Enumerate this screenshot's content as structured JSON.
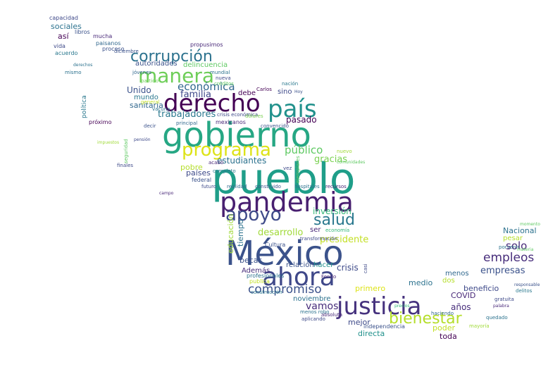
{
  "words": [
    {
      "text": "pueblo",
      "color": "#1f9e89"
    },
    {
      "text": "gobierno",
      "color": "#26a784"
    },
    {
      "text": "México",
      "color": "#3b528b"
    },
    {
      "text": "pandemia",
      "color": "#481f70"
    },
    {
      "text": "justicia",
      "color": "#46327e"
    },
    {
      "text": "ahora",
      "color": "#3f4889"
    },
    {
      "text": "derecho",
      "color": "#440154"
    },
    {
      "text": "país",
      "color": "#21918c"
    },
    {
      "text": "manera",
      "color": "#6ece58"
    },
    {
      "text": "corrupción",
      "color": "#2c728e"
    },
    {
      "text": "programa",
      "color": "#dde318"
    },
    {
      "text": "apoyo",
      "color": "#3e4a89"
    },
    {
      "text": "salud",
      "color": "#2a788e"
    },
    {
      "text": "bienestar",
      "color": "#b5de2b"
    },
    {
      "text": "compromiso",
      "color": "#3b528b"
    },
    {
      "text": "empleos",
      "color": "#472d7b"
    },
    {
      "text": "solo",
      "color": "#482878"
    },
    {
      "text": "público",
      "color": "#5ec962"
    },
    {
      "text": "económica",
      "color": "#31688e"
    },
    {
      "text": "familia",
      "color": "#3e4989"
    },
    {
      "text": "trabajadores",
      "color": "#2a788e"
    },
    {
      "text": "empresas",
      "color": "#3b528b"
    },
    {
      "text": "estudiantes",
      "color": "#2c728e"
    },
    {
      "text": "desarrollo",
      "color": "#a0da39"
    },
    {
      "text": "presidente",
      "color": "#c2df23"
    },
    {
      "text": "inversión",
      "color": "#35b779"
    },
    {
      "text": "gracias",
      "color": "#7ad151"
    },
    {
      "text": "vamos",
      "color": "#472d7b"
    },
    {
      "text": "crisis",
      "color": "#3e4a89"
    },
    {
      "text": "Nacional",
      "color": "#2c728e"
    },
    {
      "text": "sanitaria",
      "color": "#31688e"
    },
    {
      "text": "Unido",
      "color": "#3b528b"
    },
    {
      "text": "pasado",
      "color": "#440154"
    },
    {
      "text": "mundo",
      "color": "#2a788e"
    },
    {
      "text": "pobre",
      "color": "#b5de2b"
    },
    {
      "text": "países",
      "color": "#3e4a89"
    },
    {
      "text": "becas",
      "color": "#3b528b"
    },
    {
      "text": "años",
      "color": "#472d7b"
    },
    {
      "text": "beneficio",
      "color": "#3e4989"
    },
    {
      "text": "COVID",
      "color": "#482878"
    },
    {
      "text": "medio",
      "color": "#2c728e"
    },
    {
      "text": "dos",
      "color": "#b5de2b"
    },
    {
      "text": "menos",
      "color": "#31688e"
    },
    {
      "text": "poder",
      "color": "#c2df23"
    },
    {
      "text": "toda",
      "color": "#440154"
    },
    {
      "text": "directa",
      "color": "#21918c"
    },
    {
      "text": "mejor",
      "color": "#3e4a89"
    },
    {
      "text": "noviembre",
      "color": "#2c728e"
    },
    {
      "text": "primero",
      "color": "#dde318"
    },
    {
      "text": "Además",
      "color": "#472d7b"
    },
    {
      "text": "relación",
      "color": "#3b528b"
    },
    {
      "text": "hacer",
      "color": "#21918c"
    },
    {
      "text": "ser",
      "color": "#482878"
    },
    {
      "text": "sino",
      "color": "#3e4989"
    },
    {
      "text": "debe",
      "color": "#440154"
    },
    {
      "text": "autoridades",
      "color": "#3b528b"
    },
    {
      "text": "delincuencia",
      "color": "#5ec962"
    },
    {
      "text": "así",
      "color": "#440154"
    },
    {
      "text": "sociales",
      "color": "#2c728e"
    },
    {
      "text": "capacidad",
      "color": "#3e4989"
    },
    {
      "text": "mucha",
      "color": "#482878"
    },
    {
      "text": "paisanos",
      "color": "#31688e"
    },
    {
      "text": "proceso",
      "color": "#3b528b"
    },
    {
      "text": "acuerdo",
      "color": "#2a788e"
    },
    {
      "text": "vida",
      "color": "#3e4a89"
    },
    {
      "text": "libros",
      "color": "#3b528b"
    },
    {
      "text": "mismo",
      "color": "#2c728e"
    },
    {
      "text": "política",
      "color": "#2a788e"
    },
    {
      "text": "próximo",
      "color": "#440154"
    },
    {
      "text": "finales",
      "color": "#3e4a89"
    },
    {
      "text": "propusimos",
      "color": "#482878"
    },
    {
      "text": "diciembre",
      "color": "#3b528b"
    },
    {
      "text": "jóvenes",
      "color": "#31688e"
    },
    {
      "text": "partido",
      "color": "#6ece58"
    },
    {
      "text": "mundial",
      "color": "#2c728e"
    },
    {
      "text": "nueva",
      "color": "#3e4989"
    },
    {
      "text": "créditos",
      "color": "#5ec962"
    },
    {
      "text": "Carlos",
      "color": "#440154"
    },
    {
      "text": "Hoy",
      "color": "#3b528b"
    },
    {
      "text": "nación",
      "color": "#2a788e"
    },
    {
      "text": "crisis económica",
      "color": "#3e4a89"
    },
    {
      "text": "mexicanos",
      "color": "#482878"
    },
    {
      "text": "principal",
      "color": "#31688e"
    },
    {
      "text": "dólares",
      "color": "#7ad151"
    },
    {
      "text": "convencido",
      "color": "#3b528b"
    },
    {
      "text": "vacuna",
      "color": "#2c728e"
    },
    {
      "text": "general",
      "color": "#c2df23"
    },
    {
      "text": "nuevo",
      "color": "#a0da39"
    },
    {
      "text": "comunidades",
      "color": "#5ec962"
    },
    {
      "text": "vez",
      "color": "#3e4989"
    },
    {
      "text": "acabó",
      "color": "#482878"
    },
    {
      "text": "completo",
      "color": "#2a788e"
    },
    {
      "text": "federal",
      "color": "#3b528b"
    },
    {
      "text": "futuro",
      "color": "#3e4a89"
    },
    {
      "text": "realidad",
      "color": "#31688e"
    },
    {
      "text": "construido",
      "color": "#3b528b"
    },
    {
      "text": "hospitales",
      "color": "#2c728e"
    },
    {
      "text": "recursos",
      "color": "#482878"
    },
    {
      "text": "ejemplares",
      "color": "#5ec962"
    },
    {
      "text": "tiempo",
      "color": "#2c728e"
    },
    {
      "text": "educación",
      "color": "#a0da39"
    },
    {
      "text": "economía",
      "color": "#35b779"
    },
    {
      "text": "transformación",
      "color": "#3e4989"
    },
    {
      "text": "Cultura",
      "color": "#3b528b"
    },
    {
      "text": "profesionales",
      "color": "#2c728e"
    },
    {
      "text": "publica",
      "color": "#c2df23"
    },
    {
      "text": "construcción",
      "color": "#2a788e"
    },
    {
      "text": "Fondo",
      "color": "#482878"
    },
    {
      "text": "casi",
      "color": "#3e4a89"
    },
    {
      "text": "pesar",
      "color": "#b5de2b"
    },
    {
      "text": "porvenir",
      "color": "#2c728e"
    },
    {
      "text": "momento",
      "color": "#5ec962"
    },
    {
      "text": "responsable",
      "color": "#3b528b"
    },
    {
      "text": "delitos",
      "color": "#2a788e"
    },
    {
      "text": "gratuita",
      "color": "#3e4989"
    },
    {
      "text": "palabra",
      "color": "#482878"
    },
    {
      "text": "materia",
      "color": "#5ec962"
    },
    {
      "text": "quedado",
      "color": "#2c728e"
    },
    {
      "text": "haciendo",
      "color": "#31688e"
    },
    {
      "text": "mayoría",
      "color": "#a0da39"
    },
    {
      "text": "independencia",
      "color": "#3b528b"
    },
    {
      "text": "aplicando",
      "color": "#3e4a89"
    },
    {
      "text": "absoluta",
      "color": "#482878"
    },
    {
      "text": "menos robo",
      "color": "#2c728e"
    },
    {
      "text": "seguridad",
      "color": "#5ec962"
    },
    {
      "text": "impuestos",
      "color": "#a0da39"
    },
    {
      "text": "derechos",
      "color": "#2c728e"
    },
    {
      "text": "pensión",
      "color": "#3e4989"
    },
    {
      "text": "decir",
      "color": "#3b528b"
    },
    {
      "text": "precios",
      "color": "#35b779"
    },
    {
      "text": "campo",
      "color": "#482878"
    }
  ]
}
